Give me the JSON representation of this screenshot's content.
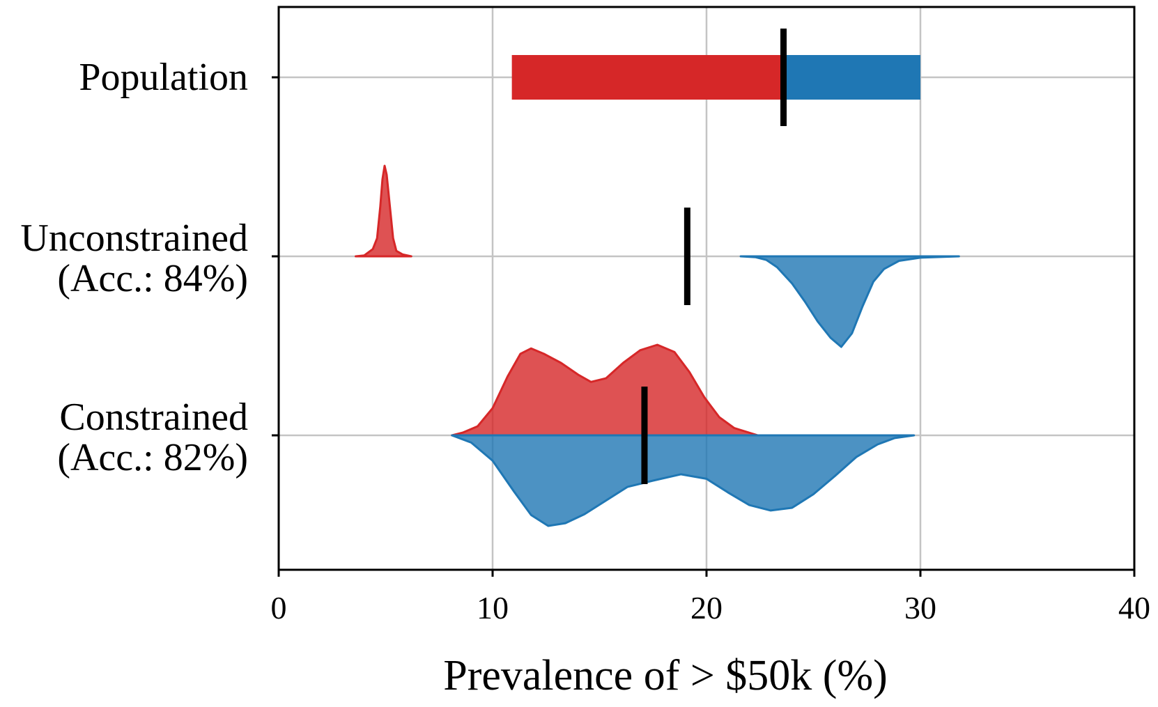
{
  "chart_data": {
    "type": "violin",
    "xlabel": "Prevalence of > $50k (%)",
    "ylabel": "",
    "xlim": [
      0,
      40
    ],
    "xticks": [
      "0",
      "10",
      "20",
      "30",
      "40"
    ],
    "xtick_values": [
      0,
      10,
      20,
      30,
      40
    ],
    "grid": true,
    "colors": {
      "group_a": "#d62728",
      "group_b": "#1f77b4",
      "marker": "#000000"
    },
    "rows": [
      {
        "label_lines": [
          "Population"
        ],
        "kind": "interval",
        "group_a_value": 10.9,
        "group_b_value": 30.0,
        "overall": 23.6
      },
      {
        "label_lines": [
          "Unconstrained",
          "(Acc.: 84%)"
        ],
        "kind": "half-violin",
        "overall": 19.1,
        "group_a_density": [
          [
            3.6,
            0.0
          ],
          [
            4.0,
            0.01
          ],
          [
            4.4,
            0.08
          ],
          [
            4.6,
            0.2
          ],
          [
            4.75,
            0.55
          ],
          [
            4.85,
            0.85
          ],
          [
            4.95,
            1.0
          ],
          [
            5.05,
            0.9
          ],
          [
            5.2,
            0.55
          ],
          [
            5.35,
            0.2
          ],
          [
            5.5,
            0.06
          ],
          [
            5.8,
            0.02
          ],
          [
            6.2,
            0.0
          ]
        ],
        "group_b_density": [
          [
            21.6,
            0.0
          ],
          [
            22.3,
            0.01
          ],
          [
            22.8,
            0.04
          ],
          [
            23.3,
            0.12
          ],
          [
            24.0,
            0.3
          ],
          [
            24.6,
            0.5
          ],
          [
            25.2,
            0.72
          ],
          [
            25.8,
            0.9
          ],
          [
            26.3,
            1.0
          ],
          [
            26.8,
            0.85
          ],
          [
            27.3,
            0.55
          ],
          [
            27.8,
            0.28
          ],
          [
            28.3,
            0.14
          ],
          [
            29.0,
            0.05
          ],
          [
            30.0,
            0.015
          ],
          [
            31.8,
            0.0
          ]
        ]
      },
      {
        "label_lines": [
          "Constrained",
          "(Acc.: 82%)"
        ],
        "kind": "split-violin",
        "overall": 17.1,
        "group_a_density": [
          [
            8.1,
            0.0
          ],
          [
            8.6,
            0.03
          ],
          [
            9.3,
            0.1
          ],
          [
            10.0,
            0.3
          ],
          [
            10.7,
            0.65
          ],
          [
            11.3,
            0.9
          ],
          [
            11.8,
            0.96
          ],
          [
            12.4,
            0.9
          ],
          [
            13.2,
            0.8
          ],
          [
            14.0,
            0.67
          ],
          [
            14.6,
            0.59
          ],
          [
            15.3,
            0.63
          ],
          [
            16.1,
            0.8
          ],
          [
            16.9,
            0.94
          ],
          [
            17.7,
            1.0
          ],
          [
            18.5,
            0.92
          ],
          [
            19.2,
            0.7
          ],
          [
            19.9,
            0.42
          ],
          [
            20.6,
            0.2
          ],
          [
            21.3,
            0.08
          ],
          [
            22.4,
            0.0
          ]
        ],
        "group_b_density": [
          [
            8.1,
            0.0
          ],
          [
            9.0,
            0.08
          ],
          [
            10.0,
            0.28
          ],
          [
            11.0,
            0.62
          ],
          [
            11.8,
            0.88
          ],
          [
            12.6,
            1.0
          ],
          [
            13.4,
            0.97
          ],
          [
            14.3,
            0.87
          ],
          [
            15.3,
            0.72
          ],
          [
            16.3,
            0.57
          ],
          [
            17.5,
            0.5
          ],
          [
            18.8,
            0.43
          ],
          [
            20.0,
            0.48
          ],
          [
            21.0,
            0.63
          ],
          [
            22.0,
            0.77
          ],
          [
            23.0,
            0.83
          ],
          [
            24.0,
            0.8
          ],
          [
            25.0,
            0.65
          ],
          [
            26.0,
            0.45
          ],
          [
            27.0,
            0.24
          ],
          [
            28.0,
            0.1
          ],
          [
            28.8,
            0.03
          ],
          [
            29.7,
            0.0
          ]
        ]
      }
    ]
  }
}
